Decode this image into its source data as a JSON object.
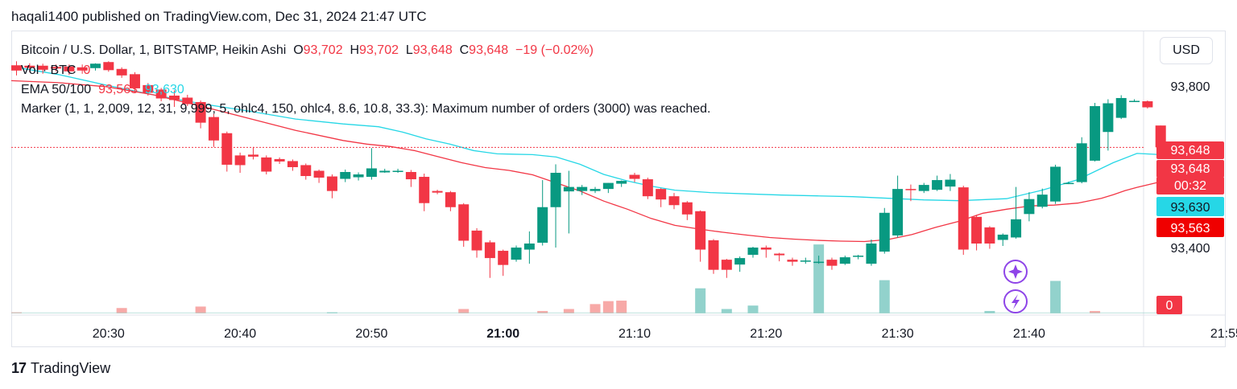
{
  "header": {
    "published_line": "haqali1400 published on TradingView.com, Dec 31, 2024 21:47 UTC"
  },
  "legend": {
    "symbol": "Bitcoin / U.S. Dollar, 1, BITSTAMP, Heikin Ashi",
    "o_label": "O",
    "o_value": "93,702",
    "h_label": "H",
    "h_value": "93,702",
    "l_label": "L",
    "l_value": "93,648",
    "c_label": "C",
    "c_value": "93,648",
    "change": "−19 (−0.02%)",
    "vol_label": "Vol · BTC",
    "vol_value": "0",
    "ema_label": "EMA 50/100",
    "ema50_value": "93,563",
    "ema100_value": "93,630",
    "marker_text": "Marker (1, 1, 2,009, 12, 31, 9,999, 5, ohlc4, 150, ohlc4, 8.6, 10.8, 33.3): Maximum number of orders (3000) was reached."
  },
  "currency_button": "USD",
  "footer": {
    "logo": "17",
    "brand": "TradingView"
  },
  "colors": {
    "up": "#089981",
    "down": "#f23645",
    "ema50": "#f23645",
    "ema100": "#26d7e6",
    "vol_up": "#92d2cc",
    "vol_down": "#f7a9a7"
  },
  "chart_data": {
    "type": "candlestick",
    "title": "Bitcoin / U.S. Dollar, 1, BITSTAMP, Heikin Ashi",
    "y_ticks": [
      "93,800",
      "93,400"
    ],
    "y_tick_values": [
      93800,
      93400
    ],
    "ylim": [
      93237,
      93937
    ],
    "x_ticks": [
      {
        "label": "20:30",
        "bar": 7,
        "bold": false
      },
      {
        "label": "20:40",
        "bar": 17,
        "bold": false
      },
      {
        "label": "20:50",
        "bar": 27,
        "bold": false
      },
      {
        "label": "21:00",
        "bar": 37,
        "bold": true
      },
      {
        "label": "21:10",
        "bar": 47,
        "bold": false
      },
      {
        "label": "21:20",
        "bar": 57,
        "bold": false
      },
      {
        "label": "21:30",
        "bar": 67,
        "bold": false
      },
      {
        "label": "21:40",
        "bar": 77,
        "bold": false
      },
      {
        "label": "21:55",
        "bar": 92,
        "bold": false
      }
    ],
    "candles": [
      {
        "o": 93851,
        "h": 93861,
        "l": 93826,
        "c": 93838
      },
      {
        "o": 93850,
        "h": 93856,
        "l": 93834,
        "c": 93845
      },
      {
        "o": 93850,
        "h": 93855,
        "l": 93830,
        "c": 93840
      },
      {
        "o": 93847,
        "h": 93853,
        "l": 93836,
        "c": 93843
      },
      {
        "o": 93848,
        "h": 93853,
        "l": 93827,
        "c": 93836
      },
      {
        "o": 93846,
        "h": 93853,
        "l": 93830,
        "c": 93838
      },
      {
        "o": 93844,
        "h": 93856,
        "l": 93838,
        "c": 93855
      },
      {
        "o": 93859,
        "h": 93861,
        "l": 93835,
        "c": 93839
      },
      {
        "o": 93842,
        "h": 93846,
        "l": 93820,
        "c": 93826
      },
      {
        "o": 93829,
        "h": 93834,
        "l": 93783,
        "c": 93794
      },
      {
        "o": 93802,
        "h": 93807,
        "l": 93776,
        "c": 93783
      },
      {
        "o": 93791,
        "h": 93795,
        "l": 93762,
        "c": 93769
      },
      {
        "o": 93776,
        "h": 93789,
        "l": 93748,
        "c": 93765
      },
      {
        "o": 93771,
        "h": 93778,
        "l": 93750,
        "c": 93755
      },
      {
        "o": 93760,
        "h": 93764,
        "l": 93695,
        "c": 93709
      },
      {
        "o": 93723,
        "h": 93730,
        "l": 93649,
        "c": 93665
      },
      {
        "o": 93683,
        "h": 93687,
        "l": 93588,
        "c": 93605
      },
      {
        "o": 93628,
        "h": 93635,
        "l": 93585,
        "c": 93604
      },
      {
        "o": 93630,
        "h": 93649,
        "l": 93618,
        "c": 93625
      },
      {
        "o": 93623,
        "h": 93628,
        "l": 93581,
        "c": 93588
      },
      {
        "o": 93619,
        "h": 93623,
        "l": 93607,
        "c": 93613
      },
      {
        "o": 93614,
        "h": 93618,
        "l": 93590,
        "c": 93599
      },
      {
        "o": 93604,
        "h": 93608,
        "l": 93568,
        "c": 93577
      },
      {
        "o": 93590,
        "h": 93593,
        "l": 93560,
        "c": 93573
      },
      {
        "o": 93576,
        "h": 93581,
        "l": 93522,
        "c": 93540
      },
      {
        "o": 93570,
        "h": 93593,
        "l": 93562,
        "c": 93587
      },
      {
        "o": 93574,
        "h": 93586,
        "l": 93566,
        "c": 93581
      },
      {
        "o": 93575,
        "h": 93646,
        "l": 93568,
        "c": 93596
      },
      {
        "o": 93586,
        "h": 93595,
        "l": 93585,
        "c": 93590
      },
      {
        "o": 93590,
        "h": 93595,
        "l": 93585,
        "c": 93590
      },
      {
        "o": 93587,
        "h": 93592,
        "l": 93550,
        "c": 93569
      },
      {
        "o": 93575,
        "h": 93583,
        "l": 93490,
        "c": 93510
      },
      {
        "o": 93540,
        "h": 93543,
        "l": 93532,
        "c": 93536
      },
      {
        "o": 93537,
        "h": 93540,
        "l": 93490,
        "c": 93500
      },
      {
        "o": 93507,
        "h": 93510,
        "l": 93402,
        "c": 93417
      },
      {
        "o": 93442,
        "h": 93448,
        "l": 93375,
        "c": 93393
      },
      {
        "o": 93413,
        "h": 93418,
        "l": 93325,
        "c": 93374
      },
      {
        "o": 93392,
        "h": 93395,
        "l": 93330,
        "c": 93357
      },
      {
        "o": 93370,
        "h": 93405,
        "l": 93365,
        "c": 93400
      },
      {
        "o": 93395,
        "h": 93440,
        "l": 93360,
        "c": 93410
      },
      {
        "o": 93412,
        "h": 93567,
        "l": 93405,
        "c": 93500
      },
      {
        "o": 93500,
        "h": 93606,
        "l": 93400,
        "c": 93585
      },
      {
        "o": 93539,
        "h": 93590,
        "l": 93435,
        "c": 93550
      },
      {
        "o": 93540,
        "h": 93555,
        "l": 93530,
        "c": 93550
      },
      {
        "o": 93540,
        "h": 93550,
        "l": 93535,
        "c": 93545
      },
      {
        "o": 93545,
        "h": 93560,
        "l": 93535,
        "c": 93560
      },
      {
        "o": 93558,
        "h": 93566,
        "l": 93550,
        "c": 93565
      },
      {
        "o": 93580,
        "h": 93585,
        "l": 93562,
        "c": 93570
      },
      {
        "o": 93569,
        "h": 93573,
        "l": 93520,
        "c": 93527
      },
      {
        "o": 93545,
        "h": 93547,
        "l": 93500,
        "c": 93519
      },
      {
        "o": 93527,
        "h": 93535,
        "l": 93495,
        "c": 93505
      },
      {
        "o": 93512,
        "h": 93515,
        "l": 93468,
        "c": 93482
      },
      {
        "o": 93490,
        "h": 93492,
        "l": 93365,
        "c": 93395
      },
      {
        "o": 93418,
        "h": 93421,
        "l": 93335,
        "c": 93345
      },
      {
        "o": 93370,
        "h": 93372,
        "l": 93325,
        "c": 93345
      },
      {
        "o": 93358,
        "h": 93378,
        "l": 93340,
        "c": 93374
      },
      {
        "o": 93382,
        "h": 93402,
        "l": 93375,
        "c": 93400
      },
      {
        "o": 93400,
        "h": 93405,
        "l": 93375,
        "c": 93395
      },
      {
        "o": 93385,
        "h": 93387,
        "l": 93366,
        "c": 93381
      },
      {
        "o": 93370,
        "h": 93375,
        "l": 93355,
        "c": 93365
      },
      {
        "o": 93365,
        "h": 93375,
        "l": 93360,
        "c": 93368
      },
      {
        "o": 93365,
        "h": 93380,
        "l": 93360,
        "c": 93365
      },
      {
        "o": 93370,
        "h": 93375,
        "l": 93345,
        "c": 93355
      },
      {
        "o": 93360,
        "h": 93380,
        "l": 93357,
        "c": 93376
      },
      {
        "o": 93377,
        "h": 93382,
        "l": 93371,
        "c": 93380
      },
      {
        "o": 93360,
        "h": 93420,
        "l": 93355,
        "c": 93410
      },
      {
        "o": 93390,
        "h": 93498,
        "l": 93385,
        "c": 93486
      },
      {
        "o": 93430,
        "h": 93578,
        "l": 93425,
        "c": 93545
      },
      {
        "o": 93545,
        "h": 93556,
        "l": 93515,
        "c": 93542
      },
      {
        "o": 93540,
        "h": 93560,
        "l": 93535,
        "c": 93555
      },
      {
        "o": 93543,
        "h": 93578,
        "l": 93540,
        "c": 93567
      },
      {
        "o": 93551,
        "h": 93582,
        "l": 93540,
        "c": 93568
      },
      {
        "o": 93549,
        "h": 93553,
        "l": 93382,
        "c": 93395
      },
      {
        "o": 93476,
        "h": 93481,
        "l": 93393,
        "c": 93410
      },
      {
        "o": 93450,
        "h": 93453,
        "l": 93397,
        "c": 93410
      },
      {
        "o": 93419,
        "h": 93435,
        "l": 93404,
        "c": 93432
      },
      {
        "o": 93425,
        "h": 93550,
        "l": 93422,
        "c": 93470
      },
      {
        "o": 93483,
        "h": 93537,
        "l": 93465,
        "c": 93520
      },
      {
        "o": 93501,
        "h": 93546,
        "l": 93497,
        "c": 93531
      },
      {
        "o": 93514,
        "h": 93605,
        "l": 93508,
        "c": 93600
      },
      {
        "o": 93560,
        "h": 93563,
        "l": 93557,
        "c": 93560
      },
      {
        "o": 93562,
        "h": 93673,
        "l": 93559,
        "c": 93658
      },
      {
        "o": 93615,
        "h": 93758,
        "l": 93613,
        "c": 93750
      },
      {
        "o": 93686,
        "h": 93767,
        "l": 93640,
        "c": 93757
      },
      {
        "o": 93721,
        "h": 93777,
        "l": 93718,
        "c": 93770
      },
      {
        "o": 93763,
        "h": 93767,
        "l": 93760,
        "c": 93763
      },
      {
        "o": 93762,
        "h": 93764,
        "l": 93744,
        "c": 93747
      },
      {
        "o": 93702,
        "h": 93702,
        "l": 93648,
        "c": 93648
      }
    ],
    "ema100_points": [
      [
        0,
        93848
      ],
      [
        8,
        93828
      ],
      [
        16,
        93802
      ],
      [
        24,
        93778
      ],
      [
        32,
        93756
      ],
      [
        40,
        93738
      ],
      [
        48,
        93718
      ],
      [
        56,
        93706
      ],
      [
        62,
        93699
      ],
      [
        66,
        93686
      ],
      [
        70,
        93669
      ],
      [
        74,
        93656
      ],
      [
        78,
        93640
      ],
      [
        80,
        93636
      ],
      [
        82,
        93632
      ],
      [
        88,
        93630
      ],
      [
        92,
        93624
      ],
      [
        96,
        93606
      ],
      [
        100,
        93581
      ],
      [
        104,
        93565
      ],
      [
        108,
        93552
      ],
      [
        112,
        93542
      ],
      [
        118,
        93536
      ],
      [
        124,
        93533
      ],
      [
        130,
        93530
      ],
      [
        136,
        93528
      ],
      [
        142,
        93526
      ],
      [
        148,
        93522
      ],
      [
        154,
        93518
      ],
      [
        160,
        93516
      ],
      [
        168,
        93521
      ],
      [
        174,
        93542
      ],
      [
        180,
        93568
      ],
      [
        186,
        93610
      ],
      [
        190,
        93633
      ],
      [
        194,
        93630
      ]
    ],
    "ema50_points": [
      [
        0,
        93813
      ],
      [
        8,
        93808
      ],
      [
        16,
        93798
      ],
      [
        24,
        93778
      ],
      [
        32,
        93750
      ],
      [
        40,
        93720
      ],
      [
        48,
        93690
      ],
      [
        56,
        93665
      ],
      [
        60,
        93656
      ],
      [
        64,
        93650
      ],
      [
        68,
        93640
      ],
      [
        72,
        93625
      ],
      [
        76,
        93610
      ],
      [
        80,
        93598
      ],
      [
        84,
        93591
      ],
      [
        88,
        93580
      ],
      [
        92,
        93560
      ],
      [
        96,
        93540
      ],
      [
        100,
        93515
      ],
      [
        104,
        93495
      ],
      [
        108,
        93472
      ],
      [
        112,
        93455
      ],
      [
        116,
        93446
      ],
      [
        120,
        93438
      ],
      [
        124,
        93431
      ],
      [
        128,
        93425
      ],
      [
        132,
        93421
      ],
      [
        136,
        93418
      ],
      [
        140,
        93416
      ],
      [
        144,
        93415
      ],
      [
        148,
        93420
      ],
      [
        152,
        93432
      ],
      [
        156,
        93450
      ],
      [
        160,
        93465
      ],
      [
        164,
        93485
      ],
      [
        168,
        93495
      ],
      [
        172,
        93503
      ],
      [
        176,
        93505
      ],
      [
        180,
        93510
      ],
      [
        184,
        93522
      ],
      [
        186,
        93531
      ],
      [
        188,
        93541
      ],
      [
        190,
        93549
      ],
      [
        192,
        93556
      ],
      [
        194,
        93563
      ]
    ],
    "volumes": [
      {
        "bar": 0,
        "v": 0.04,
        "up": false
      },
      {
        "bar": 8,
        "v": 0.22,
        "up": false
      },
      {
        "bar": 14,
        "v": 0.28,
        "up": false
      },
      {
        "bar": 24,
        "v": 0.04,
        "up": true
      },
      {
        "bar": 34,
        "v": 0.18,
        "up": false
      },
      {
        "bar": 40,
        "v": 0.1,
        "up": false
      },
      {
        "bar": 42,
        "v": 0.18,
        "up": false
      },
      {
        "bar": 44,
        "v": 0.38,
        "up": false
      },
      {
        "bar": 45,
        "v": 0.5,
        "up": false
      },
      {
        "bar": 46,
        "v": 0.52,
        "up": false
      },
      {
        "bar": 52,
        "v": 1.02,
        "up": true
      },
      {
        "bar": 54,
        "v": 0.18,
        "up": true
      },
      {
        "bar": 56,
        "v": 0.32,
        "up": true
      },
      {
        "bar": 61,
        "v": 2.8,
        "up": true
      },
      {
        "bar": 66,
        "v": 1.35,
        "up": true
      },
      {
        "bar": 74,
        "v": 0.1,
        "up": true
      },
      {
        "bar": 79,
        "v": 1.32,
        "up": true
      },
      {
        "bar": 82,
        "v": 0.1,
        "up": false
      }
    ],
    "price_labels": [
      {
        "text": "93,648",
        "value": 93648,
        "kind": "last"
      },
      {
        "text": "93,648",
        "value": 93648,
        "kind": "last2"
      },
      {
        "text": "00:32",
        "value": 93648,
        "kind": "countdown"
      },
      {
        "text": "93,630",
        "value": 93630,
        "kind": "ema100"
      },
      {
        "text": "93,563",
        "value": 93563,
        "kind": "ema50"
      }
    ],
    "vol_label": "0",
    "last_price": 93648
  }
}
